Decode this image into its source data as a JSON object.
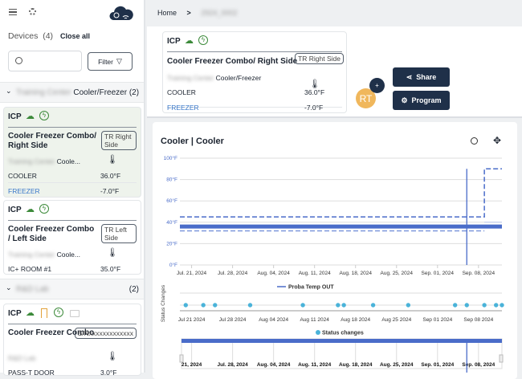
{
  "sidebar": {
    "devices_label": "Devices",
    "devices_count": "(4)",
    "close_all": "Close all",
    "search_placeholder": "",
    "filter_label": "Filter",
    "groups": [
      {
        "name_blurred": "Training Center",
        "name": "Cooler/Freezer",
        "count": "(2)"
      },
      {
        "name_blurred": "R&D Lab",
        "name": "",
        "count": "(2)"
      }
    ],
    "cards": [
      {
        "type": "ICP",
        "title": "Cooler Freezer Combo/ Right Side",
        "tag": "TR Right Side",
        "location_blurred": "Training Center",
        "location": "Coole...",
        "rows": [
          {
            "label": "COOLER",
            "value": "36.0°F"
          },
          {
            "label": "FREEZER",
            "value": "-7.0°F"
          }
        ]
      },
      {
        "type": "ICP",
        "title": "Cooler Freezer Combo / Left Side",
        "tag": "TR Left Side",
        "location_blurred": "Training Center",
        "location": "Coole...",
        "rows": [
          {
            "label": "IC+ ROOM #1",
            "value": "35.0°F"
          }
        ]
      },
      {
        "type": "ICP",
        "title": "Cooler Freezer Combo",
        "tag": "S/Nxxxxxxxxxxxxx",
        "location_blurred": "R&D Lab",
        "location": "",
        "rows": [
          {
            "label": "PASS-T DOOR",
            "value": "3.0°F"
          }
        ]
      }
    ]
  },
  "breadcrumb": {
    "home": "Home",
    "current_blurred": "2924_0002"
  },
  "device": {
    "type": "ICP",
    "title": "Cooler Freezer Combo/ Right Side",
    "tag": "TR Right Side",
    "location_blurred": "Training Center",
    "location": "Cooler/Freezer",
    "rows": [
      {
        "label": "COOLER",
        "value": "36.0°F"
      },
      {
        "label": "FREEZER",
        "value": "-7.0°F"
      }
    ],
    "avatar": "RT",
    "share": "Share",
    "program": "Program"
  },
  "colors": {
    "accent": "#1f3049",
    "series": "#4a6cc9",
    "status": "#4ab3d9",
    "green": "#3c8a3a",
    "orange": "#e3a23a",
    "blue_label": "#3a78c9"
  },
  "chart_data": [
    {
      "type": "line",
      "title": "Cooler | Cooler",
      "ylabel": "",
      "yticks": [
        "0°F",
        "20°F",
        "40°F",
        "60°F",
        "80°F",
        "100°F"
      ],
      "ylim": [
        0,
        100
      ],
      "xlim": [
        "2024-07-19",
        "2024-09-12"
      ],
      "xticks": [
        "Jul. 21, 2024",
        "Jul. 28, 2024",
        "Aug. 04, 2024",
        "Aug. 11, 2024",
        "Aug. 18, 2024",
        "Aug. 25, 2024",
        "Sep. 01, 2024",
        "Sep. 08, 2024"
      ],
      "legend": "Proba Temp OUT",
      "legend_position": "bottom",
      "grid": true,
      "series": [
        {
          "name": "Proba Temp OUT",
          "points": [
            [
              "2024-07-19",
              36
            ],
            [
              "2024-09-06",
              36
            ],
            [
              "2024-09-06",
              90
            ],
            [
              "2024-09-06",
              0
            ],
            [
              "2024-09-06",
              36
            ],
            [
              "2024-09-12",
              36
            ]
          ]
        }
      ],
      "limits": {
        "upper": [
          [
            "2024-07-19",
            45
          ],
          [
            "2024-09-09",
            45
          ],
          [
            "2024-09-09",
            90
          ],
          [
            "2024-09-12",
            90
          ]
        ],
        "lower": [
          [
            "2024-07-19",
            32
          ],
          [
            "2024-09-09",
            32
          ]
        ]
      }
    },
    {
      "type": "scatter",
      "ylabel": "Status Changes",
      "legend": "Status changes",
      "legend_position": "bottom",
      "xticks": [
        "Jul 21 2024",
        "Jul 28 2024",
        "Aug 04 2024",
        "Aug 11 2024",
        "Aug 18 2024",
        "Aug 25 2024",
        "Sep 01 2024",
        "Sep 08 2024"
      ],
      "points": [
        "2024-07-20",
        "2024-07-23",
        "2024-07-25",
        "2024-07-31",
        "2024-08-09",
        "2024-08-15",
        "2024-08-16",
        "2024-08-21",
        "2024-08-27",
        "2024-09-04",
        "2024-09-06",
        "2024-09-09",
        "2024-09-11",
        "2024-09-12"
      ]
    },
    {
      "type": "navigator",
      "xticks": [
        "21, 2024",
        "Jul. 28, 2024",
        "Aug. 04, 2024",
        "Aug. 11, 2024",
        "Aug. 18, 2024",
        "Aug. 25, 2024",
        "Sep. 01, 2024",
        "Sep. 08, 2024"
      ]
    }
  ]
}
